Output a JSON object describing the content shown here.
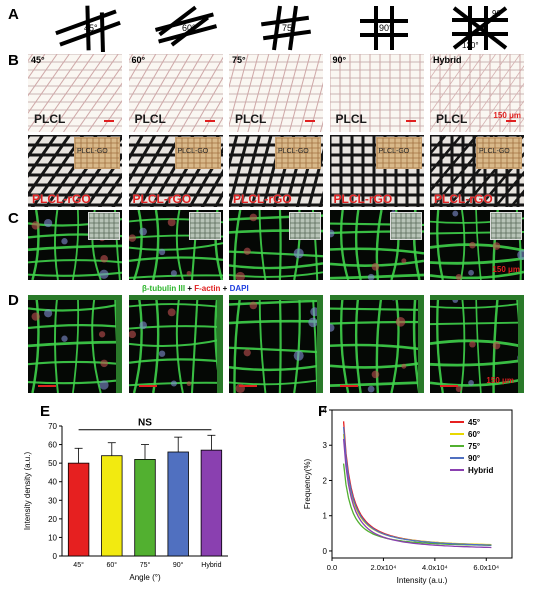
{
  "panels": {
    "a": "A",
    "b": "B",
    "c": "C",
    "d": "D",
    "e": "E",
    "f": "F"
  },
  "row_a": {
    "angles": [
      "45°",
      "60°",
      "75°",
      "90°"
    ],
    "hybrid_angles": [
      "90°",
      "120°"
    ]
  },
  "row_b": {
    "angle_labels": [
      "45°",
      "60°",
      "75°",
      "90°",
      "Hybrid"
    ],
    "plcl_label": "PLCL",
    "inset_label": "PLCL-GO",
    "rgo_label": "PLCL-rGO",
    "scale_text": "150 μm"
  },
  "row_c": {
    "scale_text": "150 μm"
  },
  "row_d": {
    "legend": {
      "tubulin": "β-tubulin III",
      "plus1": " + ",
      "actin": "F-actin",
      "plus2": " + ",
      "dapi": "DAPI"
    },
    "scale_text": "150 μm",
    "colors": {
      "tubulin": "#2bb52b",
      "actin": "#e02020",
      "dapi": "#2040e0"
    }
  },
  "chart_data": [
    {
      "type": "bar",
      "categories": [
        "45°",
        "60°",
        "75°",
        "90°",
        "Hybrid"
      ],
      "values": [
        50,
        54,
        52,
        56,
        57
      ],
      "errors": [
        8,
        7,
        8,
        8,
        8
      ],
      "colors": [
        "#e62020",
        "#f2ea10",
        "#52b030",
        "#5070c0",
        "#8a40b0"
      ],
      "ylabel": "Intensity density (a.u.)",
      "xlabel": "Angle (°)",
      "ylim": [
        0,
        70
      ],
      "yticks": [
        "0",
        "10",
        "20",
        "30",
        "40",
        "50",
        "60",
        "70"
      ],
      "annotation": "NS"
    },
    {
      "type": "line",
      "xlabel": "Intensity (a.u.)",
      "ylabel": "Frequency(%)",
      "xlim": [
        0,
        70000
      ],
      "ylim": [
        -0.2,
        4
      ],
      "xticks": [
        "0.0",
        "2.0x10⁴",
        "4.0x10⁴",
        "6.0x10⁴"
      ],
      "xtick_values": [
        0,
        20000,
        40000,
        60000
      ],
      "yticks": [
        "0",
        "1",
        "2",
        "3",
        "4"
      ],
      "legend_position": "top-right",
      "series": [
        {
          "name": "45°",
          "color": "#e62020",
          "peak": 3.7,
          "x_start": 4500,
          "tail": 0.1
        },
        {
          "name": "60°",
          "color": "#e8d800",
          "peak": 3.3,
          "x_start": 4500,
          "tail": 0.08
        },
        {
          "name": "75°",
          "color": "#52b030",
          "peak": 2.5,
          "x_start": 4500,
          "tail": 0.12
        },
        {
          "name": "90°",
          "color": "#5070c0",
          "peak": 3.5,
          "x_start": 4500,
          "tail": 0.06
        },
        {
          "name": "Hybrid",
          "color": "#8a40b0",
          "peak": 3.2,
          "x_start": 4500,
          "tail": 0.04
        }
      ]
    }
  ]
}
